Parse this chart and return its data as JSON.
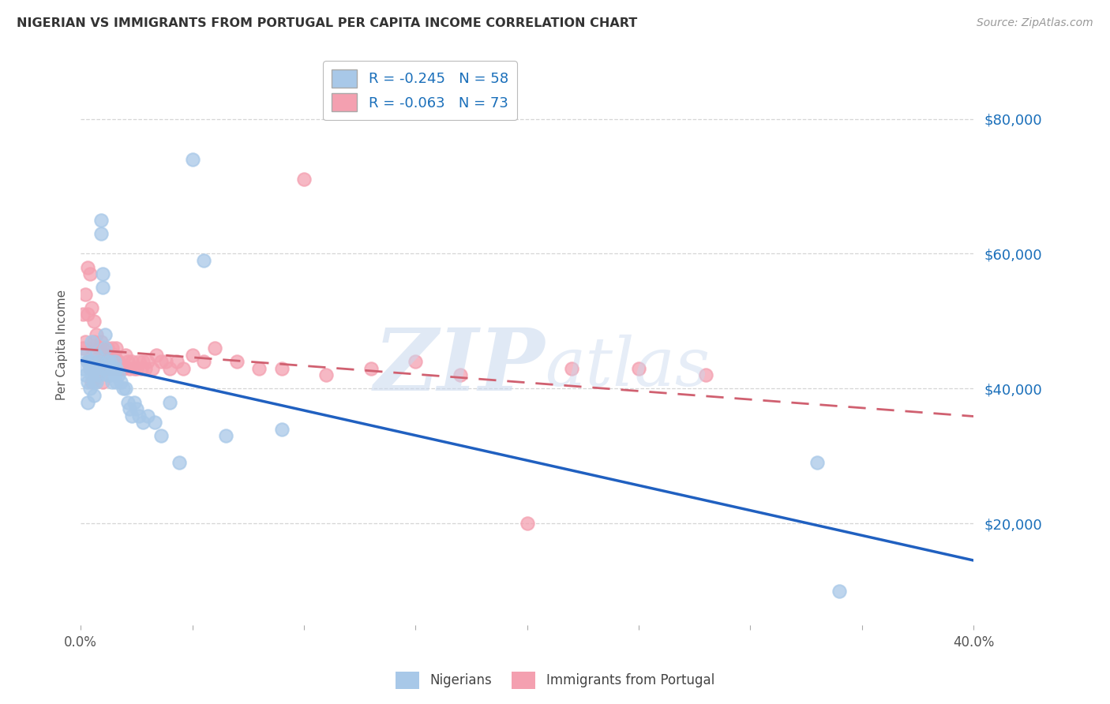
{
  "title": "NIGERIAN VS IMMIGRANTS FROM PORTUGAL PER CAPITA INCOME CORRELATION CHART",
  "source": "Source: ZipAtlas.com",
  "ylabel": "Per Capita Income",
  "yticks": [
    20000,
    40000,
    60000,
    80000
  ],
  "ytick_labels": [
    "$20,000",
    "$40,000",
    "$60,000",
    "$80,000"
  ],
  "xmin": 0.0,
  "xmax": 0.4,
  "ymin": 5000,
  "ymax": 88000,
  "legend_blue_label": "R = -0.245   N = 58",
  "legend_pink_label": "R = -0.063   N = 73",
  "blue_scatter_color": "#a8c8e8",
  "pink_scatter_color": "#f4a0b0",
  "blue_line_color": "#2060c0",
  "pink_line_color": "#d06070",
  "nigerians_label": "Nigerians",
  "portugal_label": "Immigrants from Portugal",
  "nigerians_x": [
    0.001,
    0.002,
    0.002,
    0.003,
    0.003,
    0.003,
    0.004,
    0.004,
    0.005,
    0.005,
    0.005,
    0.006,
    0.006,
    0.006,
    0.007,
    0.007,
    0.007,
    0.008,
    0.008,
    0.009,
    0.009,
    0.01,
    0.01,
    0.01,
    0.011,
    0.011,
    0.012,
    0.012,
    0.013,
    0.013,
    0.014,
    0.014,
    0.015,
    0.015,
    0.016,
    0.016,
    0.017,
    0.018,
    0.019,
    0.02,
    0.021,
    0.022,
    0.023,
    0.024,
    0.025,
    0.026,
    0.028,
    0.03,
    0.033,
    0.036,
    0.04,
    0.044,
    0.05,
    0.055,
    0.065,
    0.09,
    0.33,
    0.34
  ],
  "nigerians_y": [
    43000,
    45000,
    42000,
    44000,
    41000,
    38000,
    43000,
    40000,
    47000,
    42000,
    44000,
    43000,
    41000,
    39000,
    45000,
    43000,
    41000,
    44000,
    42000,
    63000,
    65000,
    57000,
    55000,
    43000,
    48000,
    46000,
    44000,
    42000,
    44000,
    42000,
    43000,
    41000,
    44000,
    42000,
    43000,
    41000,
    42000,
    41000,
    40000,
    40000,
    38000,
    37000,
    36000,
    38000,
    37000,
    36000,
    35000,
    36000,
    35000,
    33000,
    38000,
    29000,
    74000,
    59000,
    33000,
    34000,
    29000,
    10000
  ],
  "portugal_x": [
    0.001,
    0.001,
    0.002,
    0.002,
    0.003,
    0.003,
    0.003,
    0.004,
    0.004,
    0.005,
    0.005,
    0.005,
    0.006,
    0.006,
    0.006,
    0.007,
    0.007,
    0.007,
    0.008,
    0.008,
    0.009,
    0.009,
    0.01,
    0.01,
    0.01,
    0.011,
    0.011,
    0.012,
    0.012,
    0.013,
    0.013,
    0.014,
    0.014,
    0.015,
    0.015,
    0.016,
    0.016,
    0.017,
    0.018,
    0.019,
    0.02,
    0.021,
    0.022,
    0.023,
    0.024,
    0.025,
    0.026,
    0.027,
    0.028,
    0.029,
    0.03,
    0.032,
    0.034,
    0.036,
    0.038,
    0.04,
    0.043,
    0.046,
    0.05,
    0.055,
    0.06,
    0.07,
    0.08,
    0.09,
    0.1,
    0.11,
    0.13,
    0.15,
    0.17,
    0.2,
    0.22,
    0.25,
    0.28
  ],
  "portugal_y": [
    51000,
    46000,
    54000,
    47000,
    58000,
    51000,
    44000,
    57000,
    43000,
    52000,
    46000,
    41000,
    50000,
    47000,
    43000,
    48000,
    44000,
    42000,
    46000,
    43000,
    47000,
    44000,
    46000,
    43000,
    41000,
    45000,
    43000,
    46000,
    43000,
    45000,
    43000,
    46000,
    43000,
    45000,
    43000,
    46000,
    44000,
    44000,
    43000,
    43000,
    45000,
    44000,
    43000,
    44000,
    43000,
    43000,
    44000,
    43000,
    44000,
    43000,
    44000,
    43000,
    45000,
    44000,
    44000,
    43000,
    44000,
    43000,
    45000,
    44000,
    46000,
    44000,
    43000,
    43000,
    71000,
    42000,
    43000,
    44000,
    42000,
    20000,
    43000,
    43000,
    42000
  ]
}
